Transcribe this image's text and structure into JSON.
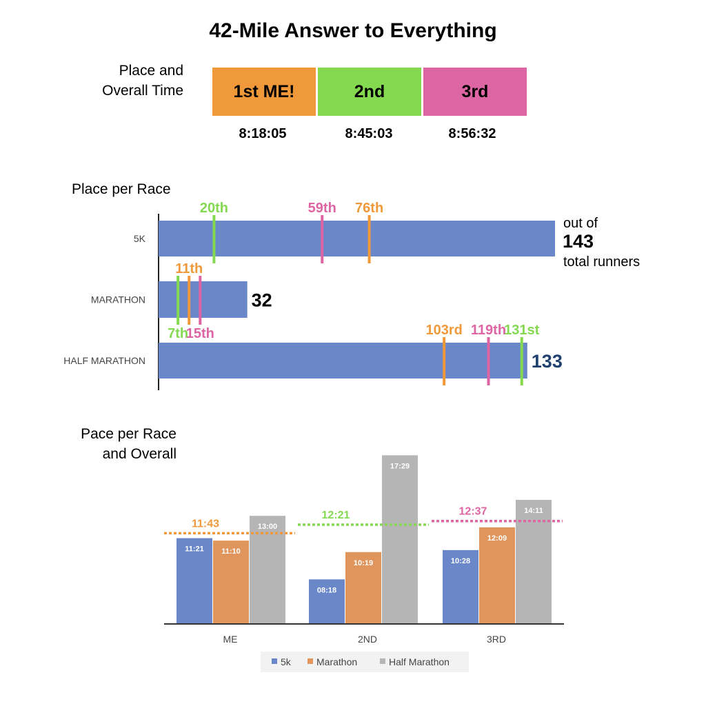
{
  "title": "42-Mile Answer to Everything",
  "place_section": {
    "label_line1": "Place and",
    "label_line2": "Overall Time",
    "places": [
      {
        "label": "1st  ME!",
        "time": "8:18:05",
        "color": "#F0993A"
      },
      {
        "label": "2nd",
        "time": "8:45:03",
        "color": "#84D951"
      },
      {
        "label": "3rd",
        "time": "8:56:32",
        "color": "#DE65A3"
      }
    ]
  },
  "colors": {
    "me": "#F0993A",
    "second": "#84D951",
    "third": "#DE65A3",
    "bar_blue": "#6A87C9",
    "bar_orange": "#E0955C",
    "bar_gray": "#B5B5B5",
    "count_navy": "#1F3F6E"
  },
  "chart_data": [
    {
      "type": "bar",
      "orientation": "horizontal",
      "title": "Place per Race",
      "categories": [
        "5K",
        "MARATHON",
        "HALF MARATHON"
      ],
      "totals": [
        143,
        32,
        133
      ],
      "total_labels": [
        "143",
        "32",
        "133"
      ],
      "total_note_above": "out of",
      "total_note_below": "total runners",
      "markers": [
        {
          "race": 0,
          "value": 20,
          "label": "20th",
          "who": "second",
          "label_pos": "above"
        },
        {
          "race": 0,
          "value": 59,
          "label": "59th",
          "who": "third",
          "label_pos": "above"
        },
        {
          "race": 0,
          "value": 76,
          "label": "76th",
          "who": "me",
          "label_pos": "above"
        },
        {
          "race": 1,
          "value": 11,
          "label": "11th",
          "who": "me",
          "label_pos": "above"
        },
        {
          "race": 1,
          "value": 7,
          "label": "7th",
          "who": "second",
          "label_pos": "below"
        },
        {
          "race": 1,
          "value": 15,
          "label": "15th",
          "who": "third",
          "label_pos": "below"
        },
        {
          "race": 2,
          "value": 103,
          "label": "103rd",
          "who": "me",
          "label_pos": "above"
        },
        {
          "race": 2,
          "value": 119,
          "label": "119th",
          "who": "third",
          "label_pos": "above"
        },
        {
          "race": 2,
          "value": 131,
          "label": "131st",
          "who": "second",
          "label_pos": "above"
        }
      ]
    },
    {
      "type": "bar",
      "title_line1": "Pace per Race",
      "title_line2": "and Overall",
      "categories": [
        "ME",
        "2ND",
        "3RD"
      ],
      "ylim": [
        5,
        19
      ],
      "series": [
        {
          "name": "5k",
          "values": [
            11.35,
            8.3,
            10.467
          ],
          "labels": [
            "11:21",
            "08:18",
            "10:28"
          ]
        },
        {
          "name": "Marathon",
          "values": [
            11.167,
            10.317,
            12.15
          ],
          "labels": [
            "11:10",
            "10:19",
            "12:09"
          ]
        },
        {
          "name": "Half Marathon",
          "values": [
            13.0,
            17.483,
            14.183
          ],
          "labels": [
            "13:00",
            "17:29",
            "14:11"
          ]
        }
      ],
      "overall": [
        {
          "value": 11.717,
          "label": "11:43",
          "who": "me"
        },
        {
          "value": 12.35,
          "label": "12:21",
          "who": "second"
        },
        {
          "value": 12.617,
          "label": "12:37",
          "who": "third"
        }
      ],
      "legend": [
        "5k",
        "Marathon",
        "Half Marathon"
      ]
    }
  ]
}
